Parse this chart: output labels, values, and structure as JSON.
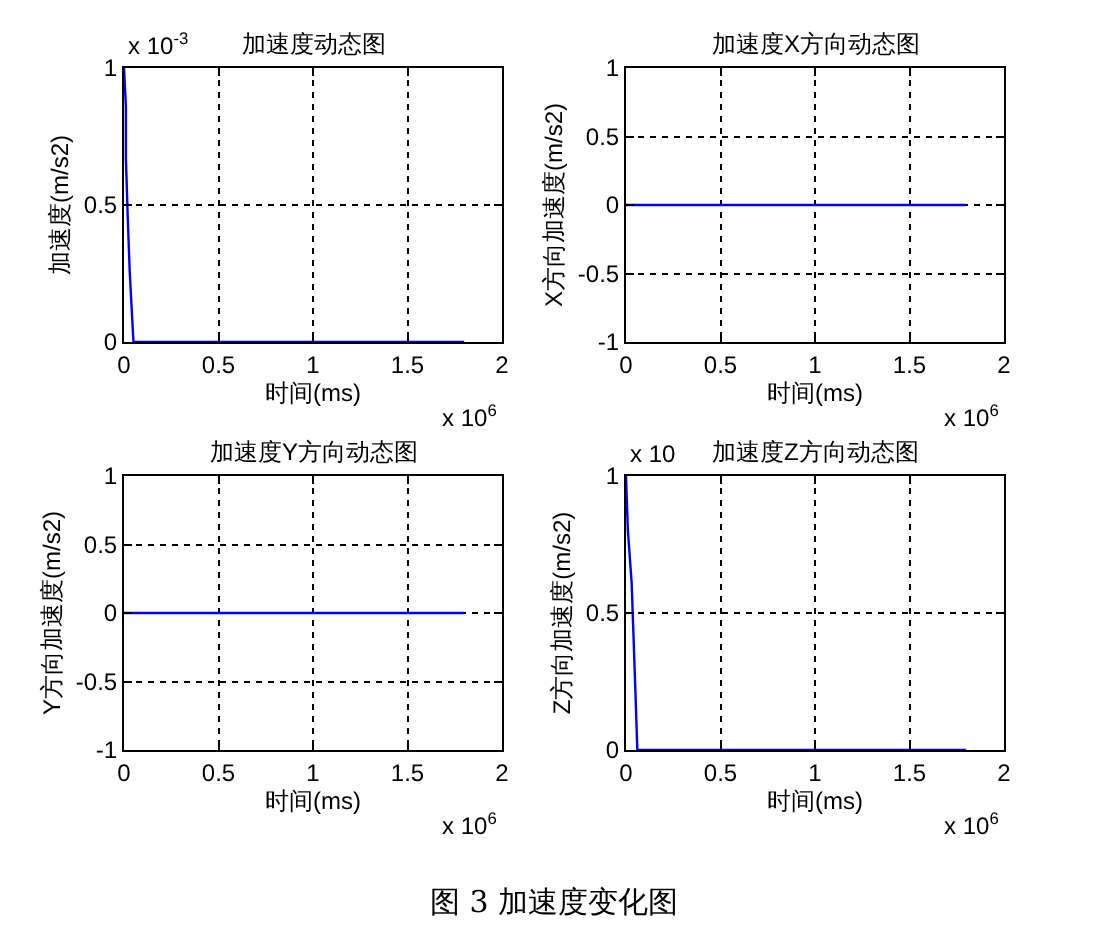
{
  "chart_data": [
    {
      "type": "line",
      "title": "加速度动态图",
      "xlabel": "时间(ms)",
      "ylabel": "加速度(m/s2)",
      "series": [
        {
          "color": "#0000ff",
          "x": [
            0,
            0.01,
            0.01,
            0.02,
            0.03,
            0.04,
            0.05,
            1.8
          ],
          "values": [
            1,
            0.86,
            0.67,
            0.45,
            0.26,
            0.13,
            0,
            0
          ]
        }
      ],
      "xlim": [
        0,
        2
      ],
      "xticks": [
        0,
        0.5,
        1,
        1.5,
        2
      ],
      "ylim": [
        0,
        1
      ],
      "yticks": [
        0,
        0.5,
        1
      ],
      "grid": true,
      "annotations": [
        "x 10$^{6}$",
        "x 10$^{-3}$"
      ]
    },
    {
      "type": "line",
      "title": "加速度X方向动态图",
      "xlabel": "时间(ms)",
      "ylabel": "X方向加速度(m/s2)",
      "series": [
        {
          "color": "#0000ff",
          "x": [
            0,
            1.8
          ],
          "values": [
            0,
            0
          ]
        }
      ],
      "xlim": [
        0,
        2
      ],
      "xticks": [
        0,
        0.5,
        1,
        1.5,
        2
      ],
      "ylim": [
        -1,
        1
      ],
      "yticks": [
        -1,
        -0.5,
        0,
        0.5,
        1
      ],
      "grid": true,
      "annotations": [
        "x 10$^{6}$"
      ]
    },
    {
      "type": "line",
      "title": "加速度Y方向动态图",
      "xlabel": "时间(ms)",
      "ylabel": "Y方向加速度(m/s2)",
      "series": [
        {
          "color": "#0000ff",
          "x": [
            0,
            1.8
          ],
          "values": [
            0,
            0
          ]
        }
      ],
      "xlim": [
        0,
        2
      ],
      "xticks": [
        0,
        0.5,
        1,
        1.5,
        2
      ],
      "ylim": [
        -1,
        1
      ],
      "yticks": [
        -1,
        -0.5,
        0,
        0.5,
        1
      ],
      "grid": true,
      "annotations": [
        "x 10$^{6}$"
      ]
    },
    {
      "type": "line",
      "title": "加速度Z方向动态图",
      "xlabel": "时间(ms)",
      "ylabel": "Z方向加速度(m/s2)",
      "series": [
        {
          "color": "#0000ff",
          "x": [
            0,
            0.01,
            0.03,
            0.04,
            0.05,
            0.06,
            1.8
          ],
          "values": [
            1,
            0.8,
            0.61,
            0.41,
            0.21,
            0,
            0
          ]
        }
      ],
      "xlim": [
        0,
        2
      ],
      "xticks": [
        0,
        0.5,
        1,
        1.5,
        2
      ],
      "ylim": [
        0,
        1
      ],
      "yticks": [
        0,
        0.5,
        1
      ],
      "grid": true,
      "annotations": [
        "x 10$^{6}$",
        "x 10",
        "图 3 加速度变化图"
      ]
    }
  ]
}
